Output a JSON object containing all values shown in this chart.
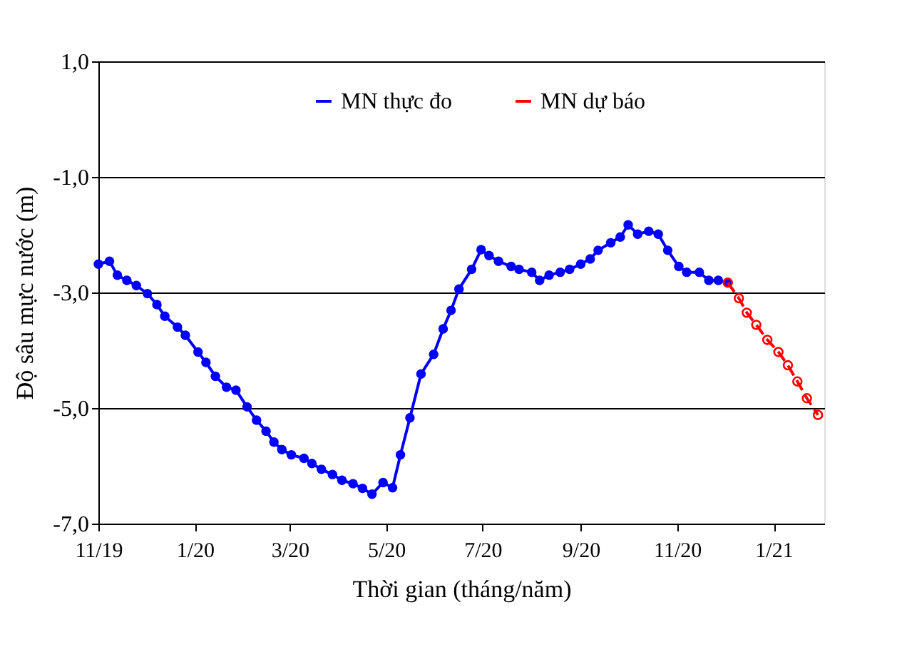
{
  "chart_data": {
    "type": "line",
    "xlabel": "Thời gian  (tháng/năm)",
    "ylabel": "Độ sâu mực nước (m)",
    "xlim": [
      "2019-11-01",
      "2021-02-02"
    ],
    "xticks": [
      {
        "value": "2019-11",
        "label": "11/19"
      },
      {
        "value": "2020-01",
        "label": "1/20"
      },
      {
        "value": "2020-03",
        "label": "3/20"
      },
      {
        "value": "2020-05",
        "label": "5/20"
      },
      {
        "value": "2020-07",
        "label": "7/20"
      },
      {
        "value": "2020-09",
        "label": "9/20"
      },
      {
        "value": "2020-11",
        "label": "11/20"
      },
      {
        "value": "2021-01",
        "label": "1/21"
      }
    ],
    "ylim": [
      -7,
      1
    ],
    "yticks": [
      {
        "value": 1,
        "label": "1,0"
      },
      {
        "value": -1,
        "label": "-1,0"
      },
      {
        "value": -3,
        "label": "-3,0"
      },
      {
        "value": -5,
        "label": "-5,0"
      },
      {
        "value": -7,
        "label": "-7,0"
      }
    ],
    "grid": "y",
    "legend": "top",
    "series": [
      {
        "name": "MN thực đo",
        "color": "#0000ff",
        "marker": "circle",
        "line_style": "solid",
        "x": [
          "2019-11-01",
          "2019-11-08",
          "2019-11-13",
          "2019-11-19",
          "2019-11-25",
          "2019-12-02",
          "2019-12-08",
          "2019-12-13",
          "2019-12-21",
          "2019-12-26",
          "2020-01-03",
          "2020-01-08",
          "2020-01-14",
          "2020-01-21",
          "2020-01-27",
          "2020-02-03",
          "2020-02-09",
          "2020-02-15",
          "2020-02-20",
          "2020-02-25",
          "2020-03-02",
          "2020-03-10",
          "2020-03-15",
          "2020-03-21",
          "2020-03-28",
          "2020-04-03",
          "2020-04-10",
          "2020-04-16",
          "2020-04-22",
          "2020-04-29",
          "2020-05-05",
          "2020-05-10",
          "2020-05-16",
          "2020-05-23",
          "2020-05-31",
          "2020-06-06",
          "2020-06-11",
          "2020-06-16",
          "2020-06-24",
          "2020-06-30",
          "2020-07-05",
          "2020-07-11",
          "2020-07-19",
          "2020-07-24",
          "2020-08-01",
          "2020-08-06",
          "2020-08-12",
          "2020-08-19",
          "2020-08-25",
          "2020-09-01",
          "2020-09-07",
          "2020-09-12",
          "2020-09-20",
          "2020-09-26",
          "2020-10-01",
          "2020-10-07",
          "2020-10-14",
          "2020-10-20",
          "2020-10-26",
          "2020-11-02",
          "2020-11-07",
          "2020-11-15",
          "2020-11-21",
          "2020-11-27",
          "2020-12-03"
        ],
        "values": [
          -2.51,
          -2.46,
          -2.7,
          -2.79,
          -2.88,
          -3.02,
          -3.21,
          -3.41,
          -3.6,
          -3.74,
          -4.03,
          -4.21,
          -4.45,
          -4.64,
          -4.69,
          -4.98,
          -5.21,
          -5.4,
          -5.59,
          -5.72,
          -5.81,
          -5.87,
          -5.96,
          -6.06,
          -6.15,
          -6.25,
          -6.31,
          -6.39,
          -6.49,
          -6.29,
          -6.38,
          -5.81,
          -5.17,
          -4.41,
          -4.07,
          -3.63,
          -3.31,
          -2.94,
          -2.6,
          -2.26,
          -2.36,
          -2.46,
          -2.55,
          -2.6,
          -2.65,
          -2.79,
          -2.7,
          -2.65,
          -2.6,
          -2.51,
          -2.42,
          -2.27,
          -2.14,
          -2.04,
          -1.83,
          -1.99,
          -1.94,
          -1.99,
          -2.27,
          -2.55,
          -2.65,
          -2.65,
          -2.79,
          -2.79,
          -2.83
        ]
      },
      {
        "name": "MN dự báo",
        "color": "#ff0000",
        "marker": "circle_open",
        "line_style": "dashed",
        "x": [
          "2020-12-03",
          "2020-12-10",
          "2020-12-15",
          "2020-12-21",
          "2020-12-28",
          "2021-01-04",
          "2021-01-10",
          "2021-01-16",
          "2021-01-22",
          "2021-01-29"
        ],
        "values": [
          -2.83,
          -3.1,
          -3.35,
          -3.56,
          -3.82,
          -4.03,
          -4.26,
          -4.54,
          -4.83,
          -5.12
        ]
      }
    ]
  }
}
